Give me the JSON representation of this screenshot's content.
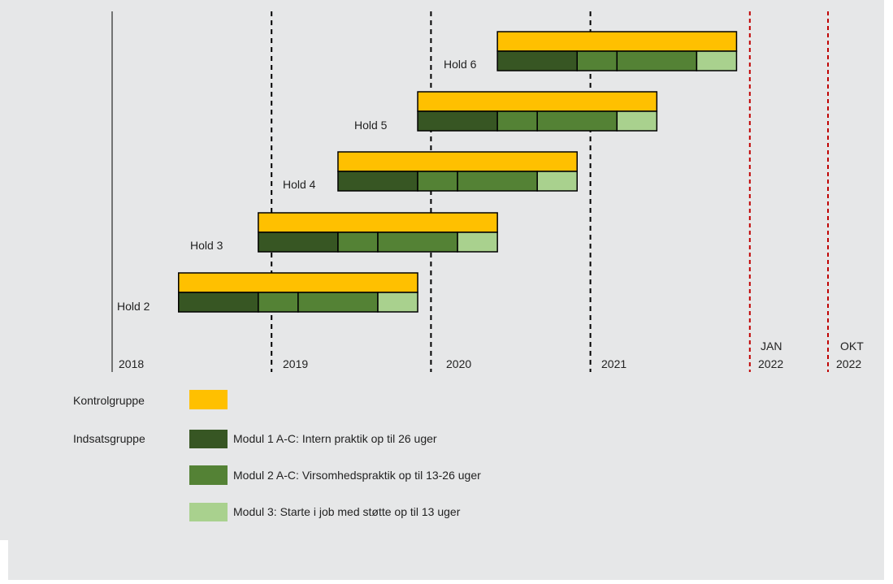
{
  "timeline": {
    "year_labels": [
      "2018",
      "2019",
      "2020",
      "2021"
    ],
    "end_markers": [
      {
        "top": "JAN",
        "bottom": "2022"
      },
      {
        "top": "OKT",
        "bottom": "2022"
      }
    ],
    "colors": {
      "background": "#e6e7e8",
      "kontrol": "#ffc000",
      "modul1": "#375623",
      "modul2": "#548235",
      "modul3": "#a9d18e",
      "year_line": "#000000",
      "end_line": "#c00000"
    }
  },
  "cohorts": [
    {
      "label": "Hold 2",
      "start": "2018-06",
      "end": "2019-12"
    },
    {
      "label": "Hold 3",
      "start": "2018-12",
      "end": "2020-06"
    },
    {
      "label": "Hold 4",
      "start": "2019-06",
      "end": "2020-12"
    },
    {
      "label": "Hold 5",
      "start": "2019-12",
      "end": "2021-06"
    },
    {
      "label": "Hold 6",
      "start": "2020-06",
      "end": "2021-12"
    }
  ],
  "legend": {
    "kontrol_label": "Kontrolgruppe",
    "indsats_label": "Indsatsgruppe",
    "modul1_label": "Modul 1 A-C: Intern praktik op til 26 uger",
    "modul2_label": "Modul 2 A-C: Virsomhedspraktik op til 13-26 uger",
    "modul3_label": "Modul 3: Starte i job med støtte op til 13 uger"
  }
}
